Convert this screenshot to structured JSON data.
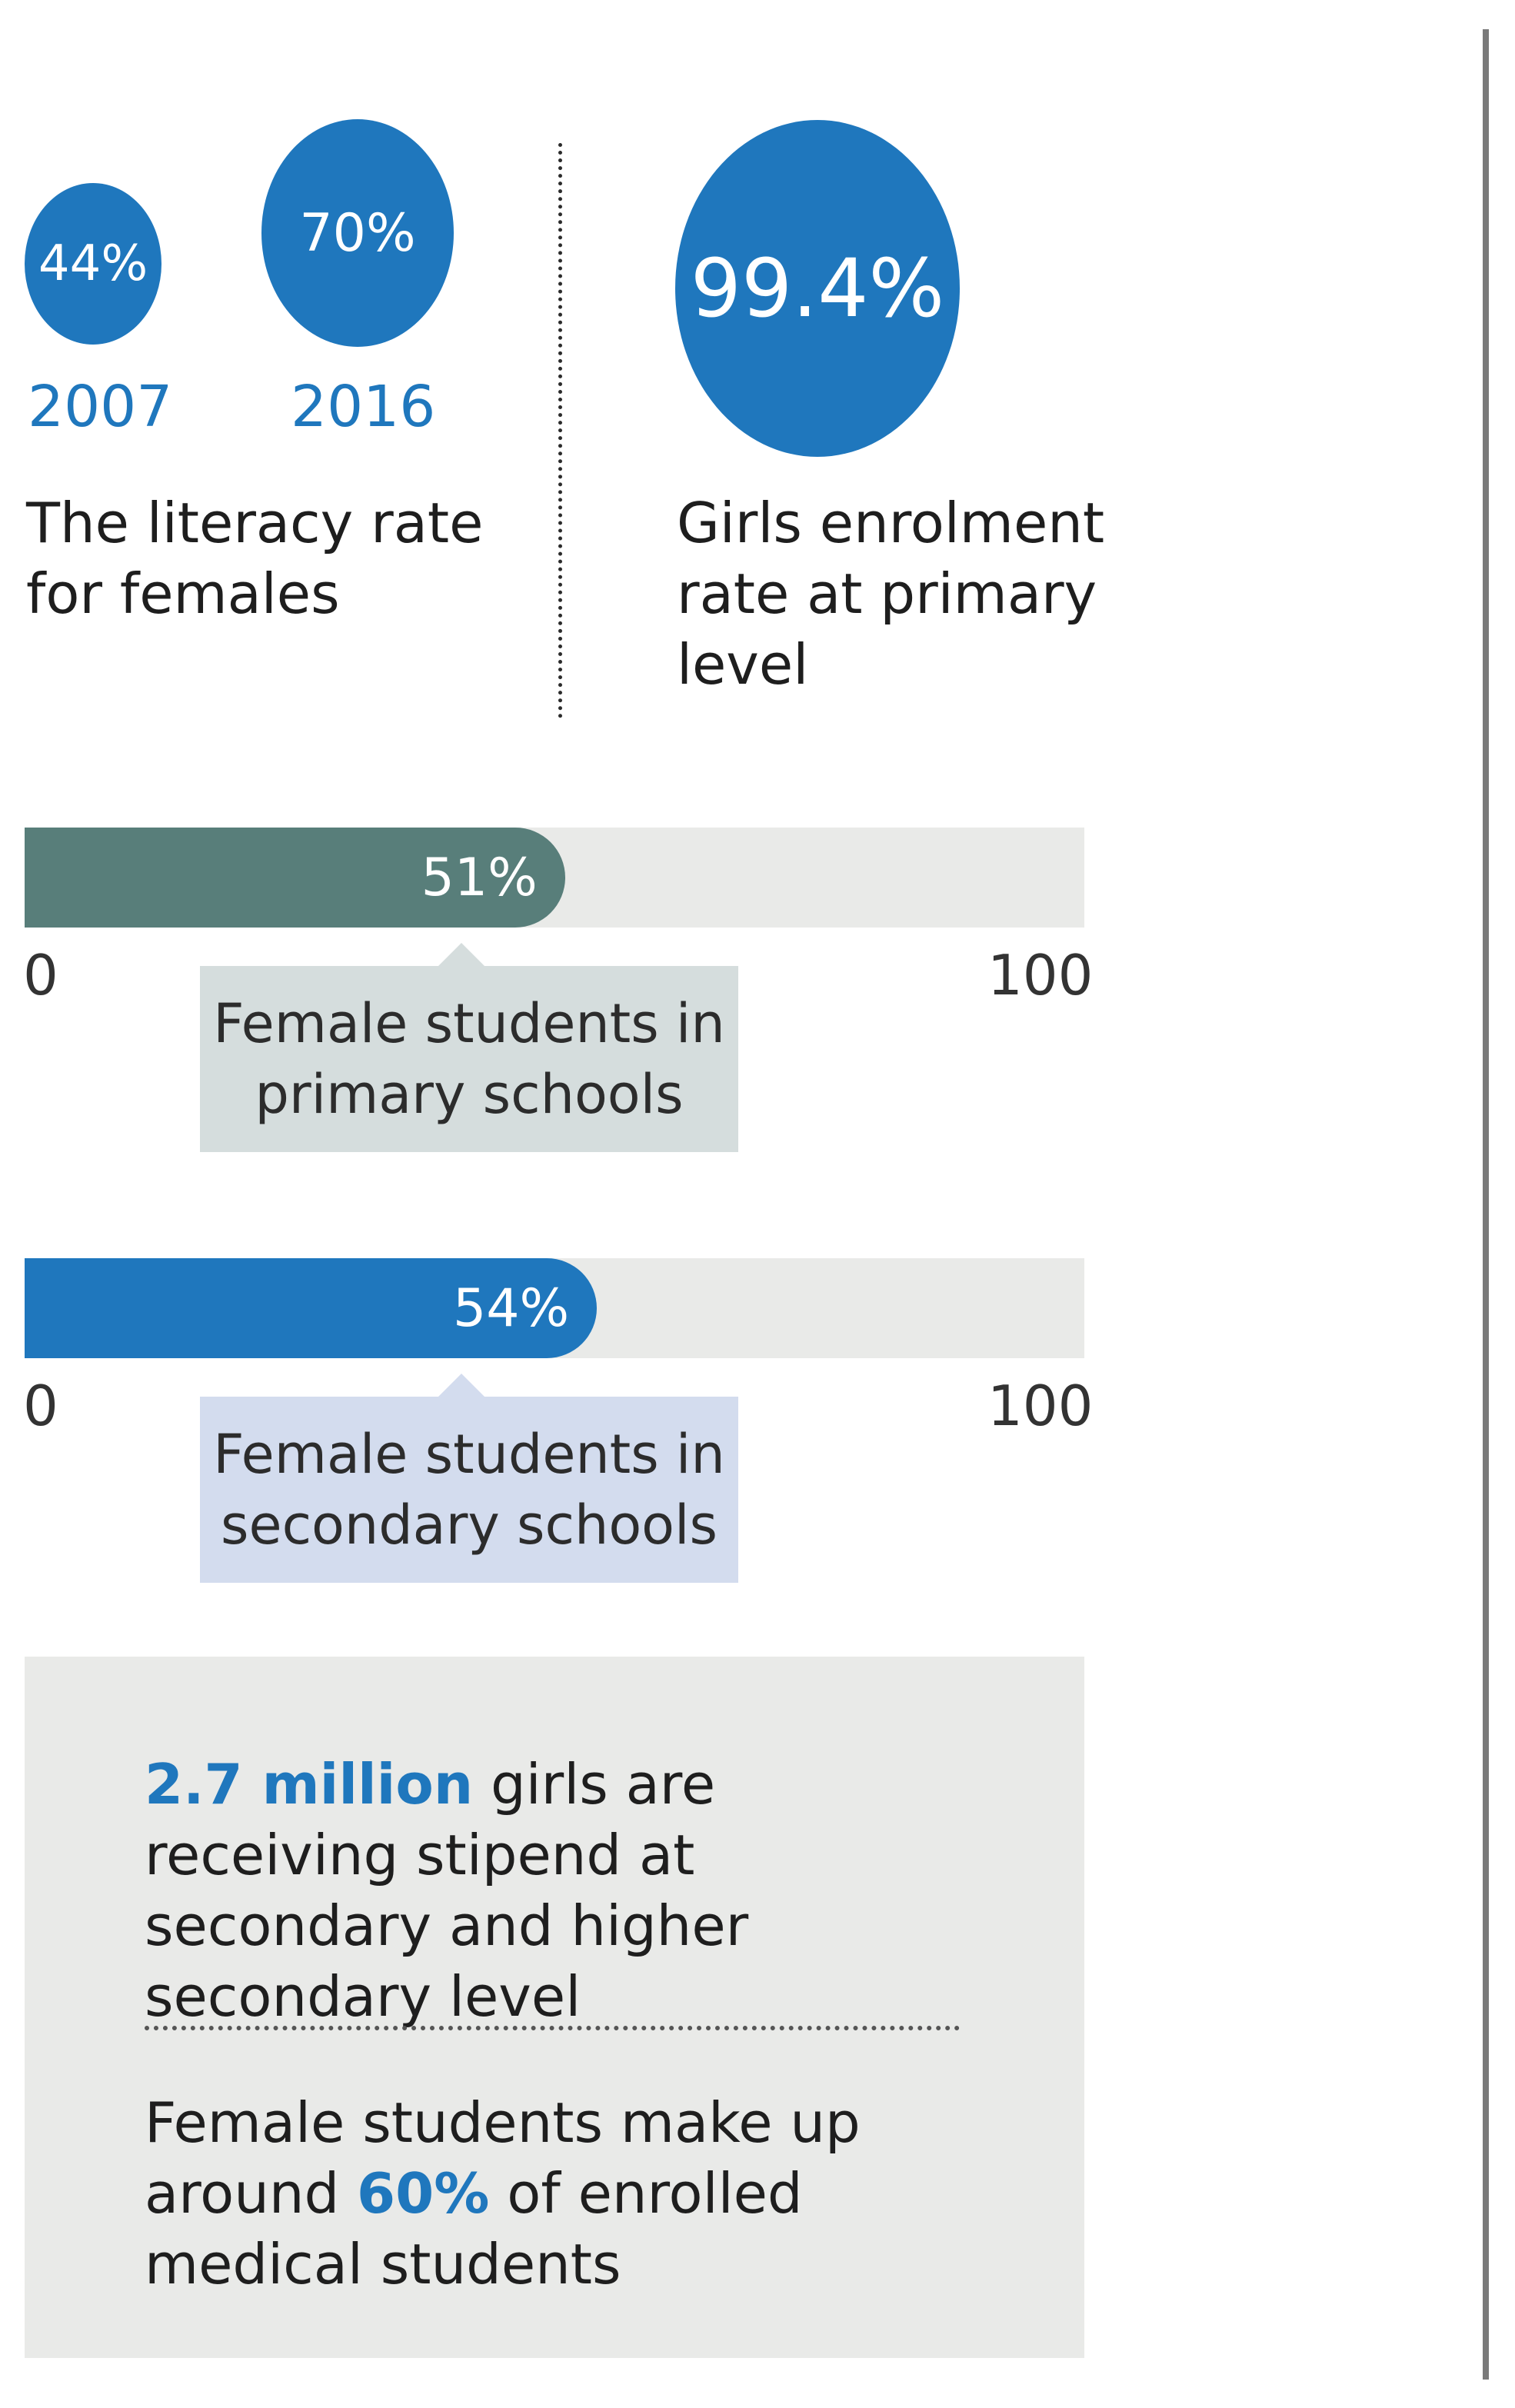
{
  "colors": {
    "accent": "#1f77bd",
    "bar_primary": "#587e7a",
    "bar_secondary": "#1f77bd",
    "track": "#e9eae8",
    "callout_primary": "#d5dddd",
    "callout_secondary": "#d3dcee"
  },
  "literacy": {
    "circles": [
      {
        "value_label": "44%",
        "year": "2007"
      },
      {
        "value_label": "70%",
        "year": "2016"
      }
    ],
    "caption": "The literacy rate\nfor females"
  },
  "enrolment": {
    "value_label": "99.4%",
    "caption": "Girls enrolment\nrate at primary\nlevel"
  },
  "chart_data": [
    {
      "type": "bar",
      "title": "",
      "categories": [
        "Female students in primary schools"
      ],
      "values": [
        51
      ],
      "value_label": "51%",
      "xlim": [
        0,
        100
      ],
      "tick_labels": [
        "0",
        "100"
      ],
      "callout": "Female students in\nprimary schools"
    },
    {
      "type": "bar",
      "title": "",
      "categories": [
        "Female students in secondary schools"
      ],
      "values": [
        54
      ],
      "value_label": "54%",
      "xlim": [
        0,
        100
      ],
      "tick_labels": [
        "0",
        "100"
      ],
      "callout": "Female students in\nsecondary schools"
    }
  ],
  "facts": {
    "stipend_highlight": "2.7 million",
    "stipend_text": " girls are receiving stipend at secondary and higher secondary level",
    "medical_text_before": "Female students make up around ",
    "medical_highlight": "60%",
    "medical_text_after": " of enrolled medical students"
  }
}
